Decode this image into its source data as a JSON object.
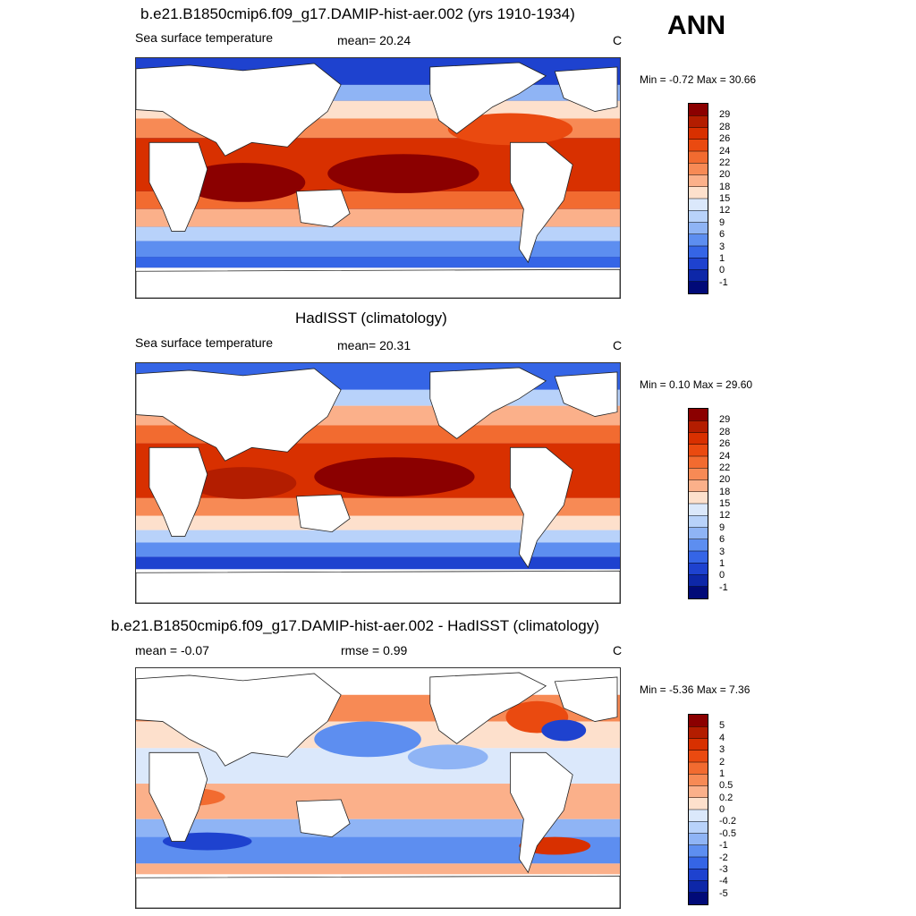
{
  "season": "ANN",
  "panels": [
    {
      "title": "b.e21.B1850cmip6.f09_g17.DAMIP-hist-aer.002 (yrs 1910-1934)",
      "left": "Sea surface temperature",
      "center": "mean=  20.24",
      "units": "C",
      "minmax": "Min =  -0.72 Max =  30.66",
      "labels": [
        "29",
        "28",
        "26",
        "24",
        "22",
        "20",
        "18",
        "15",
        "12",
        "9",
        "6",
        "3",
        "1",
        "0",
        "-1"
      ]
    },
    {
      "title": "HadISST (climatology)",
      "left": "Sea surface temperature",
      "center": "mean=  20.31",
      "units": "C",
      "minmax": "Min =   0.10 Max =  29.60",
      "labels": [
        "29",
        "28",
        "26",
        "24",
        "22",
        "20",
        "18",
        "15",
        "12",
        "9",
        "6",
        "3",
        "1",
        "0",
        "-1"
      ]
    },
    {
      "title": "b.e21.B1850cmip6.f09_g17.DAMIP-hist-aer.002 - HadISST (climatology)",
      "left": "mean =  -0.07",
      "center": "rmse =   0.99",
      "units": "C",
      "minmax": "Min =  -5.36 Max =   7.36",
      "labels": [
        "5",
        "4",
        "3",
        "2",
        "1",
        "0.5",
        "0.2",
        "0",
        "-0.2",
        "-0.5",
        "-1",
        "-2",
        "-3",
        "-4",
        "-5"
      ]
    }
  ],
  "colors": {
    "abs_scale": [
      "#8b0000",
      "#b31d00",
      "#d83000",
      "#ea4a10",
      "#f26b30",
      "#f78a55",
      "#fbb08a",
      "#fde0cc",
      "#dbe8fb",
      "#b8d2fa",
      "#8fb4f5",
      "#5d8ef0",
      "#3565e6",
      "#1e42cf",
      "#0d27a8",
      "#010a78"
    ],
    "diff_scale": [
      "#8b0000",
      "#b31d00",
      "#d83000",
      "#ea4a10",
      "#f26b30",
      "#f78a55",
      "#fbb08a",
      "#fde0cc",
      "#ffffff",
      "#dbe8fb",
      "#b8d2fa",
      "#8fb4f5",
      "#5d8ef0",
      "#3565e6",
      "#1e42cf",
      "#0d27a8",
      "#010a78"
    ]
  }
}
